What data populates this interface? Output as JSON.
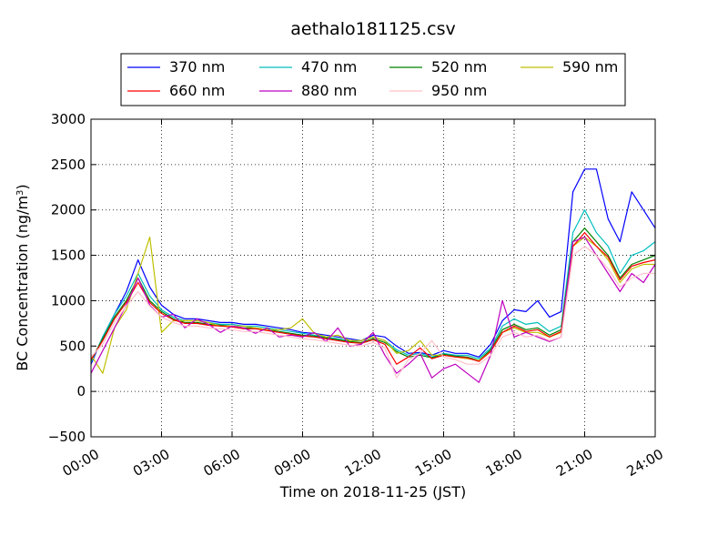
{
  "chart_data": {
    "type": "line",
    "title": "aethalo181125.csv",
    "xlabel": "Time on 2018-11-25 (JST)",
    "ylabel": "BC Concentration (ng/m³)",
    "ylabel_parts": {
      "main": "BC Concentration (ng/m",
      "sup": "3",
      "close": ")"
    },
    "xlim": [
      0,
      24
    ],
    "ylim": [
      -500,
      3000
    ],
    "grid": true,
    "legend_position": "top",
    "x_tick_values": [
      0,
      3,
      6,
      9,
      12,
      15,
      18,
      21,
      24
    ],
    "x_tick_labels": [
      "00:00",
      "03:00",
      "06:00",
      "09:00",
      "12:00",
      "15:00",
      "18:00",
      "21:00",
      "24:00"
    ],
    "y_tick_values": [
      -500,
      0,
      500,
      1000,
      1500,
      2000,
      2500,
      3000
    ],
    "y_tick_labels": [
      "−500",
      "0",
      "500",
      "1000",
      "1500",
      "2000",
      "2500",
      "3000"
    ],
    "x": [
      0,
      0.5,
      1,
      1.5,
      2,
      2.5,
      3,
      3.5,
      4,
      4.5,
      5,
      5.5,
      6,
      6.5,
      7,
      7.5,
      8,
      8.5,
      9,
      9.5,
      10,
      10.5,
      11,
      11.5,
      12,
      12.5,
      13,
      13.5,
      14,
      14.5,
      15,
      15.5,
      16,
      16.5,
      17,
      17.5,
      18,
      18.5,
      19,
      19.5,
      20,
      20.5,
      21,
      21.5,
      22,
      22.5,
      23,
      23.5,
      24
    ],
    "series": [
      {
        "name": "370 nm",
        "color": "#0000ff",
        "values": [
          300,
          600,
          850,
          1100,
          1450,
          1150,
          950,
          850,
          800,
          800,
          780,
          760,
          760,
          740,
          740,
          720,
          700,
          680,
          650,
          640,
          620,
          600,
          580,
          560,
          620,
          600,
          500,
          420,
          430,
          400,
          450,
          420,
          420,
          380,
          520,
          780,
          900,
          880,
          1000,
          820,
          880,
          2200,
          2450,
          2450,
          1900,
          1650,
          2200,
          2000,
          1800
        ]
      },
      {
        "name": "470 nm",
        "color": "#00bfbf",
        "values": [
          320,
          600,
          850,
          1050,
          1300,
          1050,
          900,
          820,
          780,
          780,
          760,
          740,
          740,
          720,
          720,
          700,
          680,
          660,
          640,
          620,
          600,
          580,
          560,
          560,
          600,
          560,
          460,
          400,
          420,
          380,
          420,
          400,
          400,
          360,
          480,
          720,
          800,
          740,
          760,
          660,
          720,
          1750,
          2000,
          1750,
          1600,
          1300,
          1500,
          1550,
          1650
        ]
      },
      {
        "name": "520 nm",
        "color": "#008000",
        "values": [
          340,
          580,
          820,
          1000,
          1250,
          1000,
          880,
          800,
          760,
          760,
          740,
          730,
          720,
          700,
          700,
          680,
          660,
          640,
          620,
          610,
          590,
          570,
          550,
          540,
          580,
          540,
          440,
          380,
          400,
          370,
          410,
          390,
          380,
          340,
          460,
          680,
          740,
          680,
          700,
          620,
          680,
          1650,
          1800,
          1650,
          1500,
          1250,
          1400,
          1450,
          1500
        ]
      },
      {
        "name": "590 nm",
        "color": "#bfbf00",
        "values": [
          400,
          200,
          700,
          900,
          1300,
          1700,
          650,
          780,
          780,
          780,
          760,
          720,
          720,
          720,
          700,
          680,
          680,
          700,
          800,
          640,
          600,
          620,
          560,
          560,
          600,
          560,
          420,
          450,
          560,
          400,
          400,
          380,
          360,
          340,
          440,
          650,
          700,
          650,
          650,
          600,
          650,
          1600,
          1700,
          1600,
          1450,
          1200,
          1350,
          1400,
          1400
        ]
      },
      {
        "name": "660 nm",
        "color": "#ff0000",
        "values": [
          350,
          560,
          800,
          980,
          1200,
          980,
          860,
          790,
          750,
          750,
          730,
          720,
          710,
          690,
          690,
          670,
          650,
          630,
          610,
          600,
          580,
          560,
          540,
          530,
          570,
          520,
          300,
          380,
          480,
          360,
          400,
          380,
          370,
          330,
          440,
          650,
          720,
          660,
          680,
          600,
          660,
          1600,
          1750,
          1600,
          1480,
          1230,
          1380,
          1420,
          1450
        ]
      },
      {
        "name": "880 nm",
        "color": "#bf00bf",
        "values": [
          200,
          450,
          700,
          950,
          1250,
          950,
          820,
          850,
          700,
          800,
          740,
          650,
          720,
          700,
          640,
          700,
          600,
          620,
          600,
          650,
          550,
          700,
          500,
          520,
          650,
          400,
          200,
          300,
          420,
          150,
          250,
          300,
          200,
          100,
          400,
          1000,
          600,
          650,
          600,
          550,
          600,
          1650,
          1700,
          1500,
          1300,
          1100,
          1300,
          1200,
          1400
        ]
      },
      {
        "name": "950 nm",
        "color": "#ffc0cb",
        "values": [
          380,
          520,
          760,
          940,
          1100,
          940,
          820,
          760,
          720,
          720,
          700,
          690,
          680,
          660,
          660,
          640,
          620,
          600,
          580,
          570,
          550,
          530,
          510,
          500,
          540,
          480,
          150,
          350,
          420,
          560,
          380,
          350,
          300,
          300,
          400,
          600,
          650,
          600,
          620,
          560,
          600,
          1500,
          1600,
          1500,
          1350,
          1150,
          1250,
          1300,
          1300
        ]
      }
    ]
  }
}
